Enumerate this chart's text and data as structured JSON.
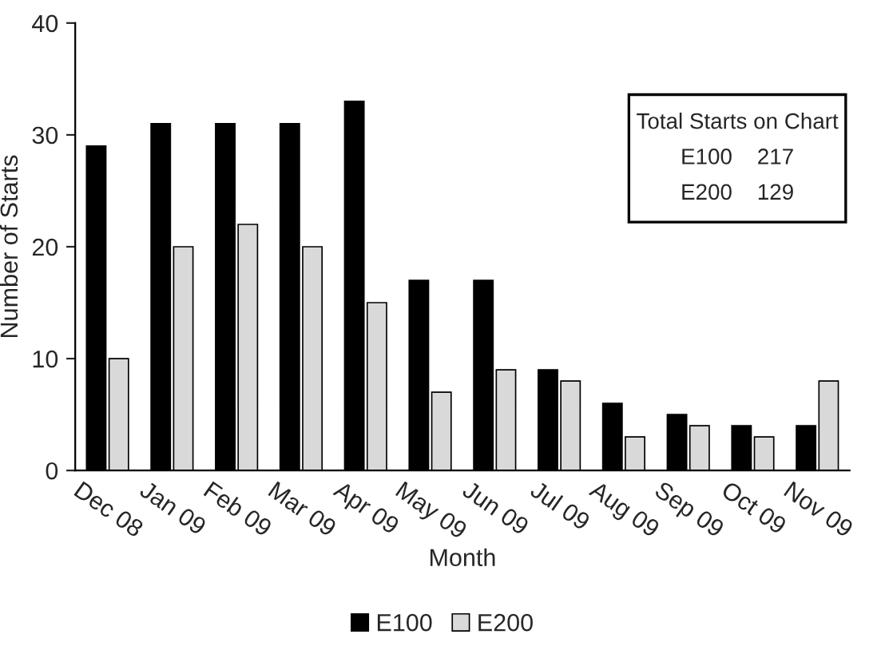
{
  "chart_data": {
    "type": "bar",
    "xlabel": "Month",
    "ylabel": "Number of Starts",
    "categories": [
      "Dec 08",
      "Jan 09",
      "Feb 09",
      "Mar 09",
      "Apr 09",
      "May 09",
      "Jun 09",
      "Jul 09",
      "Aug 09",
      "Sep 09",
      "Oct 09",
      "Nov 09"
    ],
    "series": [
      {
        "name": "E100",
        "color": "#000000",
        "values": [
          29,
          31,
          31,
          31,
          33,
          17,
          17,
          9,
          6,
          5,
          4,
          4
        ]
      },
      {
        "name": "E200",
        "color": "#d9d9d9",
        "values": [
          10,
          20,
          22,
          20,
          15,
          7,
          9,
          8,
          3,
          4,
          3,
          8
        ]
      }
    ],
    "ylim": [
      0,
      40
    ],
    "yticks": [
      0,
      10,
      20,
      30,
      40
    ],
    "grid": false,
    "legend": "bottom",
    "annotations": [
      "Total Starts on Chart",
      "E100    217",
      "E200    129"
    ]
  }
}
